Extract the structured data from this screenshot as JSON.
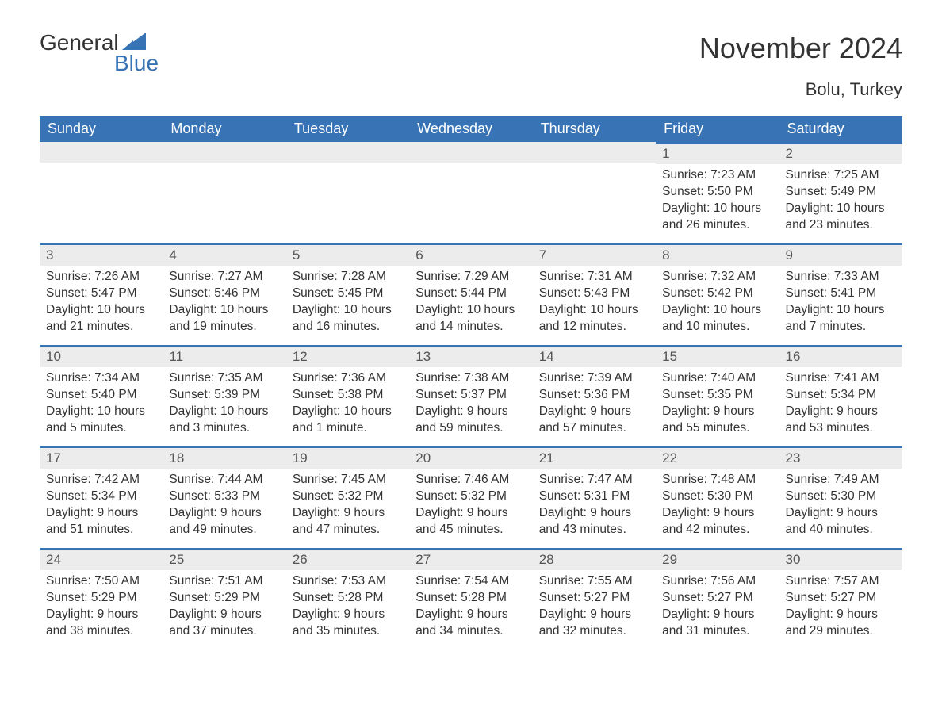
{
  "brand": {
    "part1": "General",
    "part2": "Blue"
  },
  "title": "November 2024",
  "location": "Bolu, Turkey",
  "colors": {
    "accent": "#3773b5",
    "header_bg": "#3773b5",
    "header_text": "#ffffff",
    "daynum_bg": "#ececec",
    "body_text": "#333333",
    "page_bg": "#ffffff"
  },
  "weekdays": [
    "Sunday",
    "Monday",
    "Tuesday",
    "Wednesday",
    "Thursday",
    "Friday",
    "Saturday"
  ],
  "weeks": [
    [
      null,
      null,
      null,
      null,
      null,
      {
        "n": "1",
        "sunrise": "7:23 AM",
        "sunset": "5:50 PM",
        "dl1": "10 hours",
        "dl2": "and 26 minutes."
      },
      {
        "n": "2",
        "sunrise": "7:25 AM",
        "sunset": "5:49 PM",
        "dl1": "10 hours",
        "dl2": "and 23 minutes."
      }
    ],
    [
      {
        "n": "3",
        "sunrise": "7:26 AM",
        "sunset": "5:47 PM",
        "dl1": "10 hours",
        "dl2": "and 21 minutes."
      },
      {
        "n": "4",
        "sunrise": "7:27 AM",
        "sunset": "5:46 PM",
        "dl1": "10 hours",
        "dl2": "and 19 minutes."
      },
      {
        "n": "5",
        "sunrise": "7:28 AM",
        "sunset": "5:45 PM",
        "dl1": "10 hours",
        "dl2": "and 16 minutes."
      },
      {
        "n": "6",
        "sunrise": "7:29 AM",
        "sunset": "5:44 PM",
        "dl1": "10 hours",
        "dl2": "and 14 minutes."
      },
      {
        "n": "7",
        "sunrise": "7:31 AM",
        "sunset": "5:43 PM",
        "dl1": "10 hours",
        "dl2": "and 12 minutes."
      },
      {
        "n": "8",
        "sunrise": "7:32 AM",
        "sunset": "5:42 PM",
        "dl1": "10 hours",
        "dl2": "and 10 minutes."
      },
      {
        "n": "9",
        "sunrise": "7:33 AM",
        "sunset": "5:41 PM",
        "dl1": "10 hours",
        "dl2": "and 7 minutes."
      }
    ],
    [
      {
        "n": "10",
        "sunrise": "7:34 AM",
        "sunset": "5:40 PM",
        "dl1": "10 hours",
        "dl2": "and 5 minutes."
      },
      {
        "n": "11",
        "sunrise": "7:35 AM",
        "sunset": "5:39 PM",
        "dl1": "10 hours",
        "dl2": "and 3 minutes."
      },
      {
        "n": "12",
        "sunrise": "7:36 AM",
        "sunset": "5:38 PM",
        "dl1": "10 hours",
        "dl2": "and 1 minute."
      },
      {
        "n": "13",
        "sunrise": "7:38 AM",
        "sunset": "5:37 PM",
        "dl1": "9 hours",
        "dl2": "and 59 minutes."
      },
      {
        "n": "14",
        "sunrise": "7:39 AM",
        "sunset": "5:36 PM",
        "dl1": "9 hours",
        "dl2": "and 57 minutes."
      },
      {
        "n": "15",
        "sunrise": "7:40 AM",
        "sunset": "5:35 PM",
        "dl1": "9 hours",
        "dl2": "and 55 minutes."
      },
      {
        "n": "16",
        "sunrise": "7:41 AM",
        "sunset": "5:34 PM",
        "dl1": "9 hours",
        "dl2": "and 53 minutes."
      }
    ],
    [
      {
        "n": "17",
        "sunrise": "7:42 AM",
        "sunset": "5:34 PM",
        "dl1": "9 hours",
        "dl2": "and 51 minutes."
      },
      {
        "n": "18",
        "sunrise": "7:44 AM",
        "sunset": "5:33 PM",
        "dl1": "9 hours",
        "dl2": "and 49 minutes."
      },
      {
        "n": "19",
        "sunrise": "7:45 AM",
        "sunset": "5:32 PM",
        "dl1": "9 hours",
        "dl2": "and 47 minutes."
      },
      {
        "n": "20",
        "sunrise": "7:46 AM",
        "sunset": "5:32 PM",
        "dl1": "9 hours",
        "dl2": "and 45 minutes."
      },
      {
        "n": "21",
        "sunrise": "7:47 AM",
        "sunset": "5:31 PM",
        "dl1": "9 hours",
        "dl2": "and 43 minutes."
      },
      {
        "n": "22",
        "sunrise": "7:48 AM",
        "sunset": "5:30 PM",
        "dl1": "9 hours",
        "dl2": "and 42 minutes."
      },
      {
        "n": "23",
        "sunrise": "7:49 AM",
        "sunset": "5:30 PM",
        "dl1": "9 hours",
        "dl2": "and 40 minutes."
      }
    ],
    [
      {
        "n": "24",
        "sunrise": "7:50 AM",
        "sunset": "5:29 PM",
        "dl1": "9 hours",
        "dl2": "and 38 minutes."
      },
      {
        "n": "25",
        "sunrise": "7:51 AM",
        "sunset": "5:29 PM",
        "dl1": "9 hours",
        "dl2": "and 37 minutes."
      },
      {
        "n": "26",
        "sunrise": "7:53 AM",
        "sunset": "5:28 PM",
        "dl1": "9 hours",
        "dl2": "and 35 minutes."
      },
      {
        "n": "27",
        "sunrise": "7:54 AM",
        "sunset": "5:28 PM",
        "dl1": "9 hours",
        "dl2": "and 34 minutes."
      },
      {
        "n": "28",
        "sunrise": "7:55 AM",
        "sunset": "5:27 PM",
        "dl1": "9 hours",
        "dl2": "and 32 minutes."
      },
      {
        "n": "29",
        "sunrise": "7:56 AM",
        "sunset": "5:27 PM",
        "dl1": "9 hours",
        "dl2": "and 31 minutes."
      },
      {
        "n": "30",
        "sunrise": "7:57 AM",
        "sunset": "5:27 PM",
        "dl1": "9 hours",
        "dl2": "and 29 minutes."
      }
    ]
  ],
  "labels": {
    "sunrise": "Sunrise: ",
    "sunset": "Sunset: ",
    "daylight": "Daylight: "
  }
}
